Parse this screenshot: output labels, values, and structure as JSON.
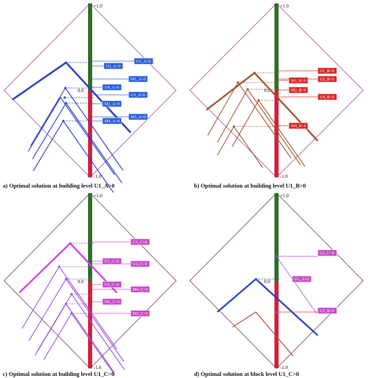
{
  "colors": {
    "green": "#2e6f25",
    "red": "#d41f3c",
    "frame": "#9c3f8e",
    "frame_dark": "#6e2a4c",
    "blue": "#2a3fc2",
    "brown": "#a4512c",
    "magenta": "#d63be6",
    "violet": "#9a49d6",
    "tag_blue": "#2a5fd8",
    "tag_red": "#dd2424",
    "tag_magenta": "#c94ac9"
  },
  "panels": [
    {
      "id": "a",
      "caption": "a) Optimal solution at building level U1_A>0",
      "tick_top": "+1.0",
      "tick_mid": "0.0",
      "tick_bot": "-1.0",
      "tags": [
        "U1_A>0",
        "U2_A>0",
        "M1_A>0",
        "U4_A>0",
        "U3_A>0",
        "M2_A>0",
        "M3_A>0",
        "M4_A>0"
      ]
    },
    {
      "id": "b",
      "caption": "b) Optimal solution at building level U1_B>0",
      "tick_top": "+1.0",
      "tick_mid": "0.0",
      "tick_bot": "-1.0",
      "tags": [
        "U1_B>0",
        "M1_B>0",
        "U2_B>0",
        "M2_B>0",
        "U4_B>0",
        "M4_B>0"
      ]
    },
    {
      "id": "c",
      "caption": "c) Optimal solution at building level U1_C>0",
      "tick_top": "+1.0",
      "tick_mid": "0.0",
      "tick_bot": "-1.0",
      "tags": [
        "U1_C>0",
        "U3_C>0",
        "U4_C>0",
        "U2_C>0",
        "M4_C>0",
        "M1_C>0",
        "M3_C>0"
      ]
    },
    {
      "id": "d",
      "caption": "d) Optimal solution at block level U1_C>0",
      "tick_top": "+1.0",
      "tick_mid": "0.0",
      "tick_bot": "-1.0",
      "tags": [
        "U1_C>0",
        "U1_A>0",
        "U1_B>0"
      ]
    }
  ]
}
